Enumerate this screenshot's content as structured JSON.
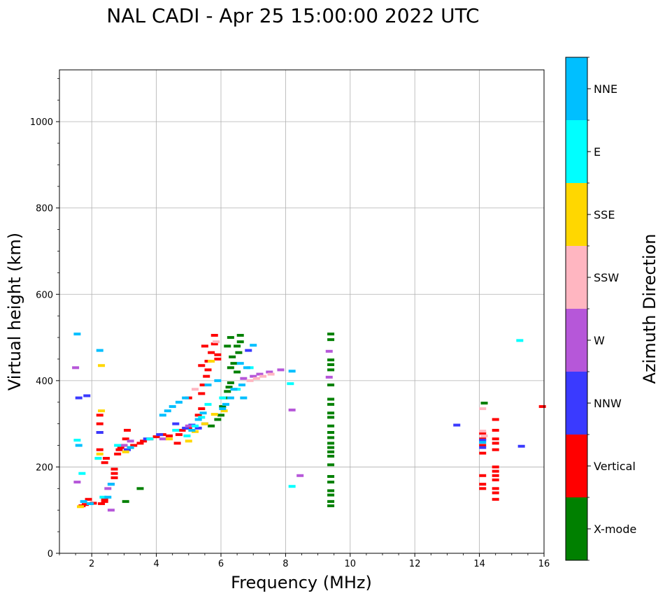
{
  "chart_data": {
    "type": "scatter",
    "title": "NAL CADI - Apr 25 15:00:00 2022 UTC",
    "xlabel": "Frequency (MHz)",
    "ylabel": "Virtual height (km)",
    "xlim": [
      1,
      16
    ],
    "ylim": [
      0,
      1120
    ],
    "xticks": [
      2,
      4,
      6,
      8,
      10,
      12,
      14,
      16
    ],
    "yticks": [
      0,
      200,
      400,
      600,
      800,
      1000
    ],
    "grid": true,
    "colorbar": {
      "label": "Azimuth Direction",
      "categories": [
        {
          "name": "X-mode",
          "color": "#008000"
        },
        {
          "name": "Vertical",
          "color": "#ff0000"
        },
        {
          "name": "NNW",
          "color": "#3a3aff"
        },
        {
          "name": "W",
          "color": "#b657d9"
        },
        {
          "name": "SSW",
          "color": "#ffb6c1"
        },
        {
          "name": "SSE",
          "color": "#ffd700"
        },
        {
          "name": "E",
          "color": "#00ffff"
        },
        {
          "name": "NNE",
          "color": "#00bfff"
        }
      ]
    },
    "series": [
      {
        "name": "X-mode",
        "color": "#008000",
        "points": [
          [
            3.05,
            120
          ],
          [
            3.5,
            150
          ],
          [
            5.7,
            295
          ],
          [
            5.9,
            310
          ],
          [
            6.0,
            320
          ],
          [
            6.05,
            340
          ],
          [
            6.1,
            360
          ],
          [
            6.2,
            375
          ],
          [
            6.25,
            385
          ],
          [
            6.3,
            395
          ],
          [
            6.3,
            430
          ],
          [
            6.2,
            480
          ],
          [
            6.35,
            455
          ],
          [
            6.4,
            440
          ],
          [
            6.5,
            420
          ],
          [
            6.5,
            480
          ],
          [
            6.55,
            465
          ],
          [
            6.6,
            490
          ],
          [
            6.6,
            505
          ],
          [
            6.3,
            500
          ],
          [
            9.4,
            110
          ],
          [
            9.4,
            120
          ],
          [
            9.4,
            135
          ],
          [
            9.4,
            145
          ],
          [
            9.4,
            165
          ],
          [
            9.4,
            178
          ],
          [
            9.4,
            205
          ],
          [
            9.4,
            225
          ],
          [
            9.4,
            235
          ],
          [
            9.4,
            245
          ],
          [
            9.4,
            255
          ],
          [
            9.4,
            268
          ],
          [
            9.4,
            280
          ],
          [
            9.4,
            295
          ],
          [
            9.4,
            315
          ],
          [
            9.4,
            325
          ],
          [
            9.4,
            345
          ],
          [
            9.4,
            357
          ],
          [
            9.4,
            390
          ],
          [
            9.4,
            425
          ],
          [
            9.4,
            437
          ],
          [
            9.4,
            448
          ],
          [
            9.4,
            495
          ],
          [
            9.4,
            508
          ],
          [
            14.15,
            348
          ]
        ]
      },
      {
        "name": "Vertical",
        "color": "#ff0000",
        "points": [
          [
            1.7,
            110
          ],
          [
            1.8,
            113
          ],
          [
            1.9,
            125
          ],
          [
            2.05,
            116
          ],
          [
            2.3,
            115
          ],
          [
            2.4,
            120
          ],
          [
            2.4,
            125
          ],
          [
            2.4,
            210
          ],
          [
            2.45,
            220
          ],
          [
            2.7,
            175
          ],
          [
            2.7,
            185
          ],
          [
            2.7,
            195
          ],
          [
            2.8,
            230
          ],
          [
            2.85,
            240
          ],
          [
            2.9,
            245
          ],
          [
            3.0,
            250
          ],
          [
            3.05,
            265
          ],
          [
            3.1,
            285
          ],
          [
            3.3,
            250
          ],
          [
            3.5,
            255
          ],
          [
            3.6,
            260
          ],
          [
            3.8,
            265
          ],
          [
            4.0,
            270
          ],
          [
            4.2,
            275
          ],
          [
            4.4,
            272
          ],
          [
            4.65,
            255
          ],
          [
            4.7,
            275
          ],
          [
            4.8,
            285
          ],
          [
            5.0,
            290
          ],
          [
            5.0,
            360
          ],
          [
            5.3,
            320
          ],
          [
            5.4,
            335
          ],
          [
            5.4,
            370
          ],
          [
            5.45,
            390
          ],
          [
            5.55,
            410
          ],
          [
            5.6,
            425
          ],
          [
            5.7,
            465
          ],
          [
            5.8,
            485
          ],
          [
            5.8,
            505
          ],
          [
            5.9,
            450
          ],
          [
            5.9,
            460
          ],
          [
            5.6,
            445
          ],
          [
            5.5,
            480
          ],
          [
            5.4,
            435
          ],
          [
            2.25,
            240
          ],
          [
            2.25,
            280
          ],
          [
            2.25,
            300
          ],
          [
            2.25,
            320
          ],
          [
            14.1,
            150
          ],
          [
            14.1,
            160
          ],
          [
            14.1,
            180
          ],
          [
            14.1,
            232
          ],
          [
            14.1,
            250
          ],
          [
            14.1,
            265
          ],
          [
            14.1,
            278
          ],
          [
            14.5,
            125
          ],
          [
            14.5,
            140
          ],
          [
            14.5,
            150
          ],
          [
            14.5,
            170
          ],
          [
            14.5,
            180
          ],
          [
            14.5,
            190
          ],
          [
            14.5,
            200
          ],
          [
            14.5,
            240
          ],
          [
            14.5,
            255
          ],
          [
            14.5,
            265
          ],
          [
            14.5,
            285
          ],
          [
            14.5,
            310
          ],
          [
            15.95,
            340
          ]
        ]
      },
      {
        "name": "NNW",
        "color": "#3a3aff",
        "points": [
          [
            1.6,
            360
          ],
          [
            1.85,
            365
          ],
          [
            2.25,
            280
          ],
          [
            2.6,
            160
          ],
          [
            3.1,
            240
          ],
          [
            3.7,
            265
          ],
          [
            4.1,
            275
          ],
          [
            4.6,
            300
          ],
          [
            4.9,
            290
          ],
          [
            5.1,
            297
          ],
          [
            5.3,
            290
          ],
          [
            5.5,
            300
          ],
          [
            6.85,
            470
          ],
          [
            13.3,
            297
          ],
          [
            14.1,
            245
          ],
          [
            14.1,
            262
          ],
          [
            15.3,
            248
          ]
        ]
      },
      {
        "name": "W",
        "color": "#b657d9",
        "points": [
          [
            1.55,
            165
          ],
          [
            1.5,
            430
          ],
          [
            2.6,
            100
          ],
          [
            2.5,
            150
          ],
          [
            3.0,
            250
          ],
          [
            3.2,
            260
          ],
          [
            4.2,
            265
          ],
          [
            5.0,
            295
          ],
          [
            6.7,
            405
          ],
          [
            7.0,
            410
          ],
          [
            7.2,
            415
          ],
          [
            7.5,
            420
          ],
          [
            7.85,
            425
          ],
          [
            8.2,
            332
          ],
          [
            8.45,
            180
          ],
          [
            9.35,
            408
          ],
          [
            9.35,
            468
          ]
        ]
      },
      {
        "name": "SSW",
        "color": "#ffb6c1",
        "points": [
          [
            5.2,
            380
          ],
          [
            5.85,
            490
          ],
          [
            6.9,
            400
          ],
          [
            7.1,
            405
          ],
          [
            7.3,
            410
          ],
          [
            7.55,
            415
          ],
          [
            14.1,
            283
          ],
          [
            14.1,
            335
          ],
          [
            14.15,
            272
          ]
        ]
      },
      {
        "name": "SSE",
        "color": "#ffd700",
        "points": [
          [
            1.65,
            108
          ],
          [
            2.2,
            220
          ],
          [
            2.25,
            230
          ],
          [
            2.3,
            330
          ],
          [
            2.3,
            435
          ],
          [
            3.05,
            235
          ],
          [
            3.2,
            245
          ],
          [
            4.4,
            265
          ],
          [
            5.0,
            260
          ],
          [
            5.2,
            282
          ],
          [
            5.5,
            300
          ],
          [
            5.8,
            322
          ],
          [
            5.7,
            445
          ],
          [
            6.1,
            330
          ]
        ]
      },
      {
        "name": "E",
        "color": "#00ffff",
        "points": [
          [
            1.55,
            262
          ],
          [
            1.7,
            185
          ],
          [
            1.95,
            115
          ],
          [
            2.2,
            220
          ],
          [
            2.35,
            130
          ],
          [
            2.8,
            250
          ],
          [
            3.8,
            265
          ],
          [
            4.6,
            285
          ],
          [
            4.95,
            272
          ],
          [
            5.2,
            295
          ],
          [
            5.4,
            315
          ],
          [
            5.6,
            345
          ],
          [
            6.05,
            360
          ],
          [
            6.5,
            380
          ],
          [
            6.9,
            430
          ],
          [
            8.15,
            393
          ],
          [
            8.2,
            155
          ],
          [
            15.25,
            493
          ]
        ]
      },
      {
        "name": "NNE",
        "color": "#00bfff",
        "points": [
          [
            1.55,
            508
          ],
          [
            1.6,
            250
          ],
          [
            1.75,
            120
          ],
          [
            1.95,
            115
          ],
          [
            2.25,
            470
          ],
          [
            2.5,
            130
          ],
          [
            2.6,
            160
          ],
          [
            3.2,
            245
          ],
          [
            4.2,
            320
          ],
          [
            4.35,
            330
          ],
          [
            4.5,
            340
          ],
          [
            4.7,
            350
          ],
          [
            4.9,
            360
          ],
          [
            5.1,
            285
          ],
          [
            5.3,
            310
          ],
          [
            5.45,
            325
          ],
          [
            5.6,
            390
          ],
          [
            5.9,
            400
          ],
          [
            6.05,
            335
          ],
          [
            6.15,
            345
          ],
          [
            6.3,
            360
          ],
          [
            6.4,
            380
          ],
          [
            6.6,
            440
          ],
          [
            6.65,
            390
          ],
          [
            6.7,
            360
          ],
          [
            6.8,
            430
          ],
          [
            7.0,
            482
          ],
          [
            8.2,
            422
          ],
          [
            14.1,
            257
          ]
        ]
      }
    ]
  }
}
